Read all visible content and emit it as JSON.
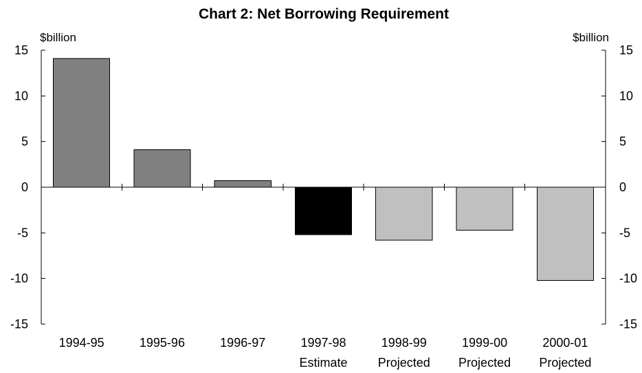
{
  "chart_data": {
    "type": "bar",
    "title": "Chart 2: Net Borrowing Requirement",
    "y_unit_left": "$billion",
    "y_unit_right": "$billion",
    "ylim": [
      -15,
      15
    ],
    "yticks": [
      15,
      10,
      5,
      0,
      -5,
      -10,
      -15
    ],
    "ytick_labels": [
      "15",
      "10",
      "5",
      "0",
      "-5",
      "-10",
      "-15"
    ],
    "categories": [
      "1994-95",
      "1995-96",
      "1996-97",
      "1997-98",
      "1998-99",
      "1999-00",
      "2000-01"
    ],
    "category_sublabels": [
      "",
      "",
      "",
      "Estimate",
      "Projected",
      "Projected",
      "Projected"
    ],
    "values": [
      14.1,
      4.1,
      0.7,
      -5.2,
      -5.8,
      -4.7,
      -10.2
    ],
    "bar_types": [
      "actual",
      "actual",
      "actual",
      "estimate",
      "projected",
      "projected",
      "projected"
    ],
    "colors": {
      "actual": "#808080",
      "estimate": "#000000",
      "projected": "#c0c0c0"
    },
    "grid": false,
    "legend": "none"
  }
}
